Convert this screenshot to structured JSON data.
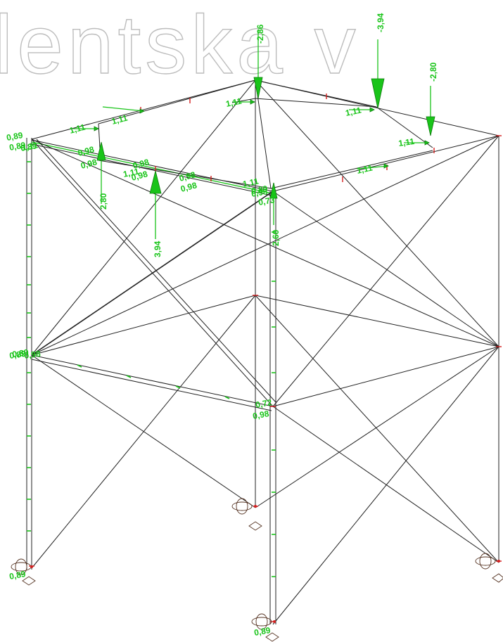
{
  "watermark": "lentska v",
  "colors": {
    "load": "#19c419",
    "member": "#202020",
    "node": "#d42020",
    "watermark": "#bdbdbd"
  },
  "labels": {
    "l_1_11_a": "1,11",
    "l_1_11_b": "1,11",
    "l_1_11_c": "1,11",
    "l_1_11_d": "1,11",
    "l_1_11_e": "1,11",
    "l_1_11_f": "1,11",
    "l_1_11_g": "1,11",
    "l_1_11_h": "1,11",
    "l_1_11_i": "1,11",
    "l_0_98_a": "0,98",
    "l_0_98_b": "0,98",
    "l_0_98_c": "0,98",
    "l_0_98_d": "0,98",
    "l_0_98_e": "0,98",
    "l_0_98_f": "0,98",
    "l_0_98_g": "0,98",
    "l_0_98_h": "0,98",
    "l_0_89_a": "0,89",
    "l_0_89_b": "0,89",
    "l_0_89_c": "0,89",
    "l_0_89_d": "0,89",
    "l_0_89_e": "0,89",
    "l_0_89_f": "0,89",
    "l_0_89_g": "0,89",
    "l_0_89_h": "0,89",
    "l_0_72": "0,72",
    "l_0_73": "0,73",
    "l_0_98_i": "0,98",
    "l_m2_86": "-2,86",
    "l_m3_94": "-3,94",
    "l_m2_80": "-2,80",
    "l_2_80": "2,80",
    "l_3_94": "3,94",
    "l_2_60": "2,60"
  }
}
